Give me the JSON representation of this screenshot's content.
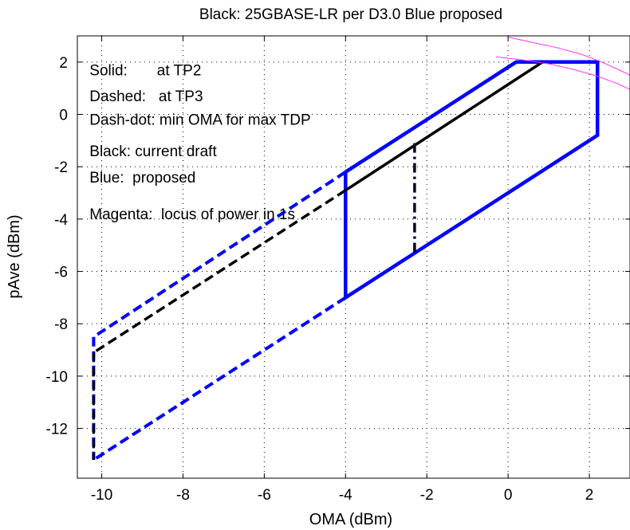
{
  "chart_data": {
    "type": "line",
    "title": "Black: 25GBASE-LR per D3.0  Blue proposed",
    "xlabel": "OMA (dBm)",
    "ylabel": "pAve (dBm)",
    "xlim": [
      -10.6,
      3.0
    ],
    "ylim": [
      -13.9,
      3.0
    ],
    "grid": true,
    "xticks": [
      -10,
      -8,
      -6,
      -4,
      -2,
      0,
      2
    ],
    "yticks": [
      -12,
      -10,
      -8,
      -6,
      -4,
      -2,
      0,
      2
    ],
    "xtick_labels": [
      "-10",
      "-8",
      "-6",
      "-4",
      "-2",
      "0",
      "2"
    ],
    "ytick_labels": [
      "-12",
      "-10",
      "-8",
      "-6",
      "-4",
      "-2",
      "0",
      "2"
    ],
    "annotations": [
      {
        "text": "Solid:       at TP2",
        "x": -10.3,
        "y": 1.5
      },
      {
        "text": "Dashed:   at TP3",
        "x": -10.3,
        "y": 0.5
      },
      {
        "text": "Dash-dot: min OMA for max TDP",
        "x": -10.3,
        "y": -0.4
      },
      {
        "text": "Black: current draft",
        "x": -10.3,
        "y": -1.6
      },
      {
        "text": "Blue:  proposed",
        "x": -10.3,
        "y": -2.6
      },
      {
        "text": "Magenta:  locus of power in 1s",
        "x": -10.3,
        "y": -4.0
      }
    ],
    "series": [
      {
        "color": "#0000ff",
        "style": "solid",
        "width": 4.5,
        "x": [
          -4.0,
          0.2,
          2.2,
          2.2,
          -4.0,
          -4.0
        ],
        "y": [
          -2.2,
          2.0,
          2.0,
          -0.8,
          -7.0,
          -2.2
        ]
      },
      {
        "color": "#0000ff",
        "style": "dashed",
        "width": 4,
        "x": [
          -4.0,
          -10.2
        ],
        "y": [
          -2.2,
          -8.5
        ]
      },
      {
        "color": "#0000ff",
        "style": "dashed",
        "width": 4,
        "x": [
          -4.0,
          -10.2
        ],
        "y": [
          -7.0,
          -13.2
        ]
      },
      {
        "color": "#0000ff",
        "style": "dashed",
        "width": 4,
        "x": [
          -10.2,
          -10.2
        ],
        "y": [
          -8.5,
          -13.2
        ]
      },
      {
        "color": "#000000",
        "style": "solid",
        "width": 3.5,
        "x": [
          -4.0,
          0.85
        ],
        "y": [
          -2.9,
          2.0
        ]
      },
      {
        "color": "#000000",
        "style": "dashed",
        "width": 3.5,
        "x": [
          -4.0,
          -10.2
        ],
        "y": [
          -2.9,
          -9.1
        ]
      },
      {
        "color": "#000000",
        "style": "dashed",
        "width": 3,
        "x": [
          -10.2,
          -10.2
        ],
        "y": [
          -9.1,
          -13.2
        ]
      },
      {
        "color": "#000033",
        "style": "dashdot",
        "width": 3.5,
        "x": [
          -2.3,
          -2.3
        ],
        "y": [
          -1.1,
          -5.4
        ]
      },
      {
        "color": "#ff33ff",
        "style": "solid",
        "width": 1,
        "x": [
          -0.3,
          0.4,
          1.0,
          1.6,
          2.2,
          2.7,
          3.0
        ],
        "y": [
          2.2,
          2.07,
          1.93,
          1.72,
          1.46,
          1.17,
          0.95
        ]
      },
      {
        "color": "#ff33ff",
        "style": "solid",
        "width": 1,
        "x": [
          0.0,
          0.6,
          1.2,
          1.8,
          2.3,
          2.7,
          3.0
        ],
        "y": [
          2.95,
          2.75,
          2.55,
          2.3,
          2.0,
          1.72,
          1.5
        ]
      }
    ]
  }
}
